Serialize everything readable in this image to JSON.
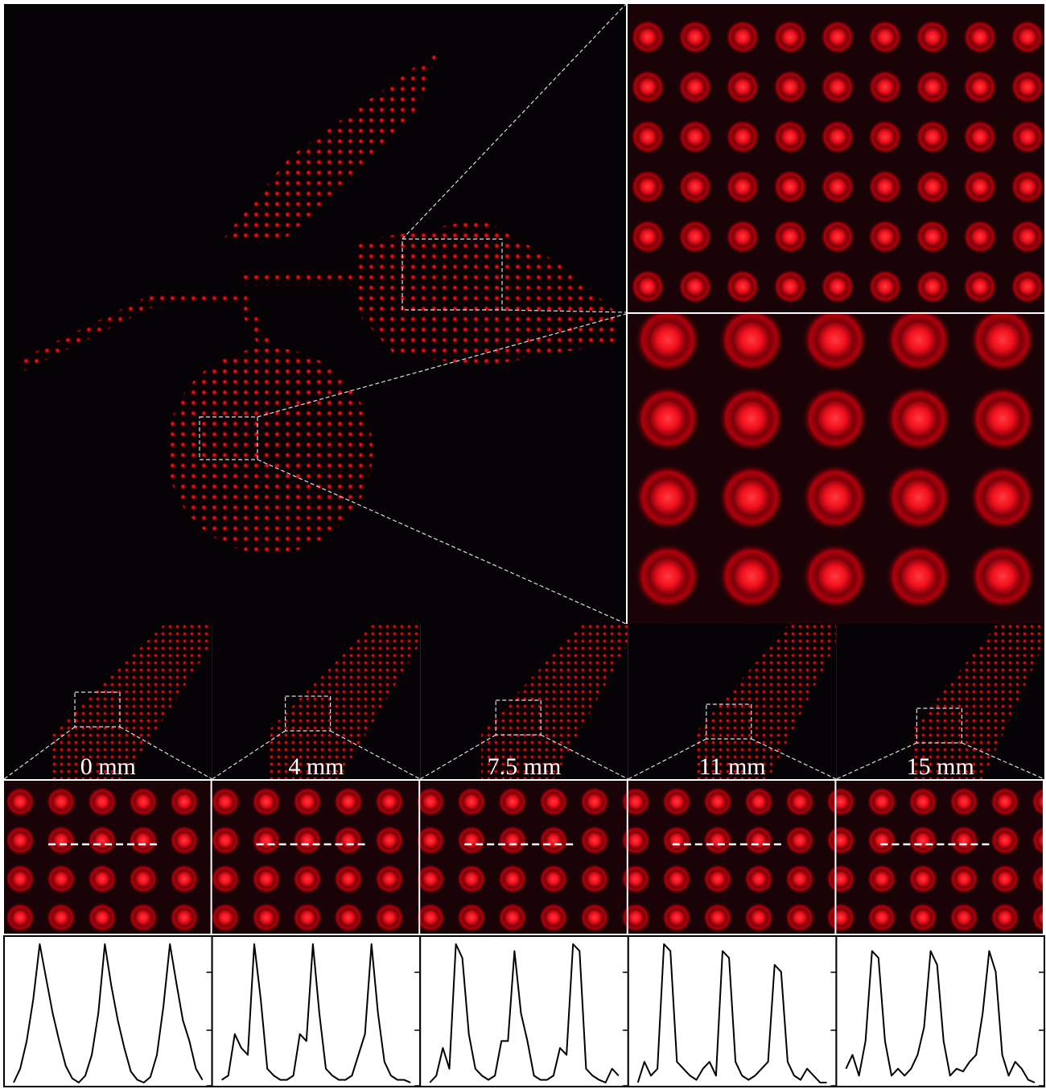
{
  "panels": [
    {
      "label": "0 mm",
      "profile": [
        0.0,
        0.1,
        0.3,
        0.6,
        1.0,
        0.75,
        0.5,
        0.3,
        0.12,
        0.03,
        0.0,
        0.05,
        0.2,
        0.5,
        1.0,
        0.7,
        0.45,
        0.25,
        0.08,
        0.02,
        0.0,
        0.04,
        0.2,
        0.55,
        1.0,
        0.72,
        0.45,
        0.3,
        0.1,
        0.02
      ]
    },
    {
      "label": "4 mm",
      "profile": [
        0.02,
        0.05,
        0.35,
        0.25,
        0.2,
        1.0,
        0.6,
        0.1,
        0.05,
        0.02,
        0.02,
        0.05,
        0.35,
        0.3,
        1.0,
        0.5,
        0.1,
        0.05,
        0.02,
        0.02,
        0.05,
        0.2,
        0.35,
        1.0,
        0.5,
        0.15,
        0.05,
        0.02,
        0.02,
        0.0
      ]
    },
    {
      "label": "7.5 mm",
      "profile": [
        0.0,
        0.05,
        0.25,
        0.1,
        1.0,
        0.9,
        0.35,
        0.1,
        0.05,
        0.02,
        0.05,
        0.3,
        0.3,
        0.95,
        0.5,
        0.3,
        0.05,
        0.02,
        0.02,
        0.05,
        0.25,
        0.2,
        1.0,
        0.95,
        0.1,
        0.05,
        0.02,
        0.0,
        0.1,
        0.05
      ]
    },
    {
      "label": "11 mm",
      "profile": [
        0.0,
        0.15,
        0.05,
        0.1,
        1.0,
        0.95,
        0.15,
        0.1,
        0.05,
        0.02,
        0.1,
        0.15,
        0.05,
        0.95,
        0.9,
        0.15,
        0.05,
        0.02,
        0.05,
        0.1,
        0.15,
        0.85,
        0.8,
        0.15,
        0.05,
        0.02,
        0.1,
        0.05,
        0.0,
        0.0
      ]
    },
    {
      "label": "15 mm",
      "profile": [
        0.1,
        0.2,
        0.05,
        0.3,
        0.95,
        0.9,
        0.3,
        0.05,
        0.1,
        0.05,
        0.1,
        0.2,
        0.4,
        0.95,
        0.85,
        0.3,
        0.05,
        0.1,
        0.08,
        0.15,
        0.2,
        0.5,
        0.95,
        0.8,
        0.2,
        0.05,
        0.15,
        0.1,
        0.02,
        0.0
      ]
    }
  ]
}
